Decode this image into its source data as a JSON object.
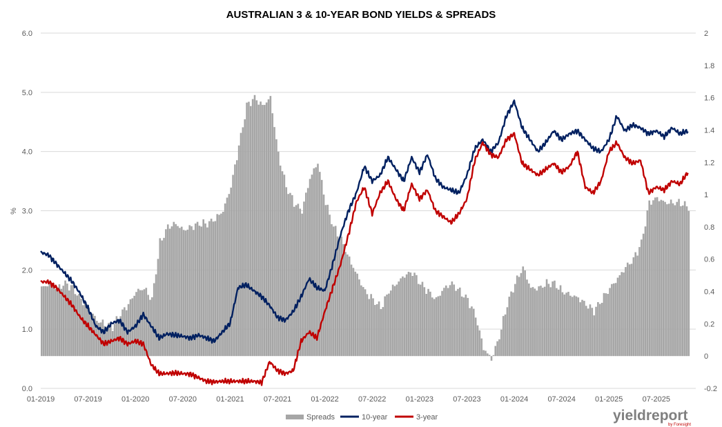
{
  "chart_data": {
    "type": "bar+line",
    "title": "AUSTRALIAN 3 & 10-YEAR BOND YIELDS & SPREADS",
    "ylabel": "%",
    "y_left_lim": [
      0.0,
      6.0
    ],
    "y_left_ticks": [
      "0.0",
      "1.0",
      "2.0",
      "3.0",
      "4.0",
      "5.0",
      "6.0"
    ],
    "y_right_lim": [
      -0.2,
      2.0
    ],
    "y_right_ticks": [
      "-0.2",
      "0",
      "0.2",
      "0.4",
      "0.6",
      "0.8",
      "1",
      "1.2",
      "1.4",
      "1.6",
      "1.8",
      "2"
    ],
    "x_ticks": [
      "01-2019",
      "07-2019",
      "01-2020",
      "07-2020",
      "01-2021",
      "07-2021",
      "01-2022",
      "07-2022",
      "01-2023",
      "07-2023",
      "01-2024",
      "07-2024",
      "01-2025",
      "07-2025"
    ],
    "x_range_months": [
      0,
      83
    ],
    "grid": "horizontal",
    "legend_position": "bottom",
    "colors": {
      "spreads": "#a6a6a6",
      "ten_year": "#002060",
      "three_year": "#c00000"
    },
    "series": [
      {
        "name": "Spreads",
        "axis": "right",
        "kind": "bar",
        "points": [
          [
            0,
            0.42
          ],
          [
            1,
            0.45
          ],
          [
            2,
            0.42
          ],
          [
            3,
            0.45
          ],
          [
            4,
            0.42
          ],
          [
            5,
            0.35
          ],
          [
            6,
            0.3
          ],
          [
            7,
            0.22
          ],
          [
            8,
            0.2
          ],
          [
            9,
            0.18
          ],
          [
            10,
            0.26
          ],
          [
            11,
            0.32
          ],
          [
            12,
            0.4
          ],
          [
            13,
            0.42
          ],
          [
            14,
            0.35
          ],
          [
            15,
            0.7
          ],
          [
            16,
            0.8
          ],
          [
            17,
            0.82
          ],
          [
            18,
            0.78
          ],
          [
            19,
            0.8
          ],
          [
            20,
            0.82
          ],
          [
            21,
            0.82
          ],
          [
            22,
            0.85
          ],
          [
            23,
            0.9
          ],
          [
            24,
            1.05
          ],
          [
            25,
            1.3
          ],
          [
            26,
            1.55
          ],
          [
            27,
            1.6
          ],
          [
            28,
            1.55
          ],
          [
            29,
            1.6
          ],
          [
            30,
            1.25
          ],
          [
            31,
            1.05
          ],
          [
            32,
            0.95
          ],
          [
            33,
            0.9
          ],
          [
            34,
            1.1
          ],
          [
            35,
            1.2
          ],
          [
            36,
            0.95
          ],
          [
            37,
            0.8
          ],
          [
            38,
            0.72
          ],
          [
            39,
            0.6
          ],
          [
            40,
            0.5
          ],
          [
            41,
            0.4
          ],
          [
            42,
            0.35
          ],
          [
            43,
            0.3
          ],
          [
            44,
            0.4
          ],
          [
            45,
            0.45
          ],
          [
            46,
            0.5
          ],
          [
            47,
            0.52
          ],
          [
            48,
            0.45
          ],
          [
            49,
            0.4
          ],
          [
            50,
            0.35
          ],
          [
            51,
            0.42
          ],
          [
            52,
            0.45
          ],
          [
            53,
            0.4
          ],
          [
            54,
            0.35
          ],
          [
            55,
            0.25
          ],
          [
            56,
            0.05
          ],
          [
            57,
            -0.02
          ],
          [
            58,
            0.12
          ],
          [
            59,
            0.32
          ],
          [
            60,
            0.45
          ],
          [
            61,
            0.55
          ],
          [
            62,
            0.42
          ],
          [
            63,
            0.42
          ],
          [
            64,
            0.45
          ],
          [
            65,
            0.45
          ],
          [
            66,
            0.4
          ],
          [
            67,
            0.38
          ],
          [
            68,
            0.36
          ],
          [
            69,
            0.32
          ],
          [
            70,
            0.28
          ],
          [
            71,
            0.35
          ],
          [
            72,
            0.42
          ],
          [
            73,
            0.48
          ],
          [
            74,
            0.55
          ],
          [
            75,
            0.6
          ],
          [
            76,
            0.7
          ],
          [
            77,
            0.95
          ],
          [
            78,
            0.98
          ],
          [
            79,
            0.95
          ],
          [
            80,
            0.95
          ],
          [
            81,
            0.95
          ],
          [
            82,
            0.92
          ]
        ]
      },
      {
        "name": "10-year",
        "axis": "left",
        "kind": "line",
        "points": [
          [
            0,
            2.3
          ],
          [
            1,
            2.25
          ],
          [
            2,
            2.1
          ],
          [
            3,
            1.95
          ],
          [
            4,
            1.8
          ],
          [
            5,
            1.6
          ],
          [
            6,
            1.35
          ],
          [
            7,
            1.05
          ],
          [
            8,
            0.95
          ],
          [
            9,
            1.1
          ],
          [
            10,
            1.15
          ],
          [
            11,
            0.95
          ],
          [
            12,
            1.05
          ],
          [
            13,
            1.25
          ],
          [
            14,
            1.05
          ],
          [
            15,
            0.85
          ],
          [
            16,
            0.92
          ],
          [
            17,
            0.9
          ],
          [
            18,
            0.88
          ],
          [
            19,
            0.85
          ],
          [
            20,
            0.9
          ],
          [
            21,
            0.85
          ],
          [
            22,
            0.8
          ],
          [
            23,
            0.95
          ],
          [
            24,
            1.1
          ],
          [
            25,
            1.7
          ],
          [
            26,
            1.75
          ],
          [
            27,
            1.65
          ],
          [
            28,
            1.55
          ],
          [
            29,
            1.4
          ],
          [
            30,
            1.2
          ],
          [
            31,
            1.15
          ],
          [
            32,
            1.3
          ],
          [
            33,
            1.55
          ],
          [
            34,
            1.85
          ],
          [
            35,
            1.7
          ],
          [
            36,
            1.65
          ],
          [
            37,
            2.1
          ],
          [
            38,
            2.6
          ],
          [
            39,
            3.0
          ],
          [
            40,
            3.3
          ],
          [
            41,
            3.75
          ],
          [
            42,
            3.5
          ],
          [
            43,
            3.6
          ],
          [
            44,
            3.9
          ],
          [
            45,
            3.7
          ],
          [
            46,
            3.5
          ],
          [
            47,
            3.9
          ],
          [
            48,
            3.65
          ],
          [
            49,
            3.95
          ],
          [
            50,
            3.55
          ],
          [
            51,
            3.4
          ],
          [
            52,
            3.35
          ],
          [
            53,
            3.3
          ],
          [
            54,
            3.6
          ],
          [
            55,
            4.05
          ],
          [
            56,
            4.2
          ],
          [
            57,
            4.0
          ],
          [
            58,
            4.15
          ],
          [
            59,
            4.6
          ],
          [
            60,
            4.85
          ],
          [
            61,
            4.4
          ],
          [
            62,
            4.2
          ],
          [
            63,
            4.0
          ],
          [
            64,
            4.15
          ],
          [
            65,
            4.35
          ],
          [
            66,
            4.2
          ],
          [
            67,
            4.3
          ],
          [
            68,
            4.35
          ],
          [
            69,
            4.2
          ],
          [
            70,
            4.05
          ],
          [
            71,
            4.0
          ],
          [
            72,
            4.2
          ],
          [
            73,
            4.6
          ],
          [
            74,
            4.35
          ],
          [
            75,
            4.45
          ],
          [
            76,
            4.4
          ],
          [
            77,
            4.3
          ],
          [
            78,
            4.35
          ],
          [
            79,
            4.25
          ],
          [
            80,
            4.4
          ],
          [
            81,
            4.3
          ],
          [
            82,
            4.35
          ]
        ]
      },
      {
        "name": "3-year",
        "axis": "left",
        "kind": "line",
        "points": [
          [
            0,
            1.8
          ],
          [
            1,
            1.8
          ],
          [
            2,
            1.7
          ],
          [
            3,
            1.55
          ],
          [
            4,
            1.4
          ],
          [
            5,
            1.2
          ],
          [
            6,
            1.05
          ],
          [
            7,
            0.9
          ],
          [
            8,
            0.75
          ],
          [
            9,
            0.8
          ],
          [
            10,
            0.85
          ],
          [
            11,
            0.75
          ],
          [
            12,
            0.8
          ],
          [
            13,
            0.75
          ],
          [
            14,
            0.4
          ],
          [
            15,
            0.25
          ],
          [
            16,
            0.25
          ],
          [
            17,
            0.26
          ],
          [
            18,
            0.25
          ],
          [
            19,
            0.24
          ],
          [
            20,
            0.18
          ],
          [
            21,
            0.12
          ],
          [
            22,
            0.11
          ],
          [
            23,
            0.12
          ],
          [
            24,
            0.12
          ],
          [
            25,
            0.12
          ],
          [
            26,
            0.12
          ],
          [
            27,
            0.12
          ],
          [
            28,
            0.1
          ],
          [
            29,
            0.45
          ],
          [
            30,
            0.3
          ],
          [
            31,
            0.25
          ],
          [
            32,
            0.3
          ],
          [
            33,
            0.8
          ],
          [
            34,
            0.95
          ],
          [
            35,
            0.85
          ],
          [
            36,
            1.3
          ],
          [
            37,
            1.7
          ],
          [
            38,
            2.1
          ],
          [
            39,
            2.6
          ],
          [
            40,
            3.15
          ],
          [
            41,
            3.4
          ],
          [
            42,
            2.95
          ],
          [
            43,
            3.3
          ],
          [
            44,
            3.5
          ],
          [
            45,
            3.2
          ],
          [
            46,
            3.0
          ],
          [
            47,
            3.45
          ],
          [
            48,
            3.2
          ],
          [
            49,
            3.35
          ],
          [
            50,
            3.0
          ],
          [
            51,
            2.9
          ],
          [
            52,
            2.8
          ],
          [
            53,
            2.95
          ],
          [
            54,
            3.2
          ],
          [
            55,
            3.85
          ],
          [
            56,
            4.15
          ],
          [
            57,
            3.95
          ],
          [
            58,
            3.9
          ],
          [
            59,
            4.2
          ],
          [
            60,
            4.3
          ],
          [
            61,
            3.8
          ],
          [
            62,
            3.7
          ],
          [
            63,
            3.6
          ],
          [
            64,
            3.7
          ],
          [
            65,
            3.8
          ],
          [
            66,
            3.65
          ],
          [
            67,
            3.75
          ],
          [
            68,
            4.0
          ],
          [
            69,
            3.4
          ],
          [
            70,
            3.3
          ],
          [
            71,
            3.5
          ],
          [
            72,
            4.0
          ],
          [
            73,
            4.15
          ],
          [
            74,
            3.9
          ],
          [
            75,
            3.8
          ],
          [
            76,
            3.85
          ],
          [
            77,
            3.3
          ],
          [
            78,
            3.4
          ],
          [
            79,
            3.35
          ],
          [
            80,
            3.5
          ],
          [
            81,
            3.45
          ],
          [
            82,
            3.65
          ]
        ]
      }
    ],
    "legend": [
      "Spreads",
      "10-year",
      "3-year"
    ]
  },
  "branding": {
    "logo_text": "yieldreport",
    "logo_sub": "by Foresight"
  }
}
